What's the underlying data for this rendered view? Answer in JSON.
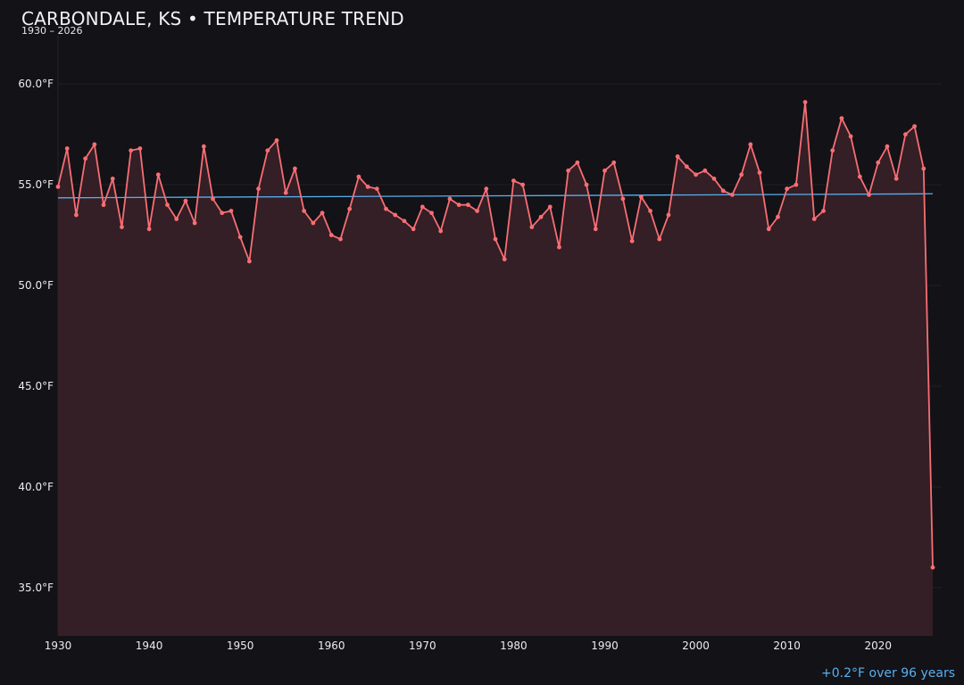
{
  "header": {
    "title": "CARBONDALE, KS • TEMPERATURE TREND",
    "subtitle": "1930 – 2026"
  },
  "footnote": "+0.2°F over 96 years",
  "colors": {
    "background": "#131217",
    "line": "#f76e74",
    "fill": "#331f25",
    "trend": "#57b0f0",
    "grid": "#202026",
    "axis_text": "#ececf0"
  },
  "chart_data": {
    "type": "area",
    "title": "CARBONDALE, KS • TEMPERATURE TREND",
    "subtitle": "1930 – 2026",
    "xlabel": "",
    "ylabel": "",
    "xlim": [
      1930,
      2026
    ],
    "ylim": [
      32.6,
      62.4
    ],
    "grid": true,
    "x_ticks": [
      1930,
      1940,
      1950,
      1960,
      1970,
      1980,
      1990,
      2000,
      2010,
      2020
    ],
    "y_ticks": [
      35,
      40,
      45,
      50,
      55,
      60
    ],
    "y_tick_labels": [
      "35.0°F",
      "40.0°F",
      "45.0°F",
      "50.0°F",
      "55.0°F",
      "60.0°F"
    ],
    "series": [
      {
        "x": [
          1930,
          1931,
          1932,
          1933,
          1934,
          1935,
          1936,
          1937,
          1938,
          1939,
          1940,
          1941,
          1942,
          1943,
          1944,
          1945,
          1946,
          1947,
          1948,
          1949,
          1950,
          1951,
          1952,
          1953,
          1954,
          1955,
          1956,
          1957,
          1958,
          1959,
          1960,
          1961,
          1962,
          1963,
          1964,
          1965,
          1966,
          1967,
          1968,
          1969,
          1970,
          1971,
          1972,
          1973,
          1974,
          1975,
          1976,
          1977,
          1978,
          1979,
          1980,
          1981,
          1982,
          1983,
          1984,
          1985,
          1986,
          1987,
          1988,
          1989,
          1990,
          1991,
          1992,
          1993,
          1994,
          1995,
          1996,
          1997,
          1998,
          1999,
          2000,
          2001,
          2002,
          2003,
          2004,
          2005,
          2006,
          2007,
          2008,
          2009,
          2010,
          2011,
          2012,
          2013,
          2014,
          2015,
          2016,
          2017,
          2018,
          2019,
          2020,
          2021,
          2022,
          2023,
          2024,
          2025,
          2026
        ],
        "values": [
          54.9,
          56.8,
          53.5,
          56.3,
          57.0,
          54.0,
          55.3,
          52.9,
          56.7,
          56.8,
          52.8,
          55.5,
          54.0,
          53.3,
          54.2,
          53.1,
          56.9,
          54.3,
          53.6,
          53.7,
          52.4,
          51.2,
          54.8,
          56.7,
          57.2,
          54.6,
          55.8,
          53.7,
          53.1,
          53.6,
          52.5,
          52.3,
          53.8,
          55.4,
          54.9,
          54.8,
          53.8,
          53.5,
          53.2,
          52.8,
          53.9,
          53.6,
          52.7,
          54.3,
          54.0,
          54.0,
          53.7,
          54.8,
          52.3,
          51.3,
          55.2,
          55.0,
          52.9,
          53.4,
          53.9,
          51.9,
          55.7,
          56.1,
          55.0,
          52.8,
          55.7,
          56.1,
          54.3,
          52.2,
          54.4,
          53.7,
          52.3,
          53.5,
          56.4,
          55.9,
          55.5,
          55.7,
          55.3,
          54.7,
          54.5,
          55.5,
          57.0,
          55.6,
          52.8,
          53.4,
          54.8,
          55.0,
          59.1,
          53.3,
          53.7,
          56.7,
          58.3,
          57.4,
          55.4,
          54.5,
          56.1,
          56.9,
          55.3,
          57.5,
          57.9,
          55.8,
          36.0
        ]
      }
    ],
    "trend_line": {
      "x": [
        1930,
        2026
      ],
      "values": [
        54.35,
        54.55
      ]
    }
  }
}
